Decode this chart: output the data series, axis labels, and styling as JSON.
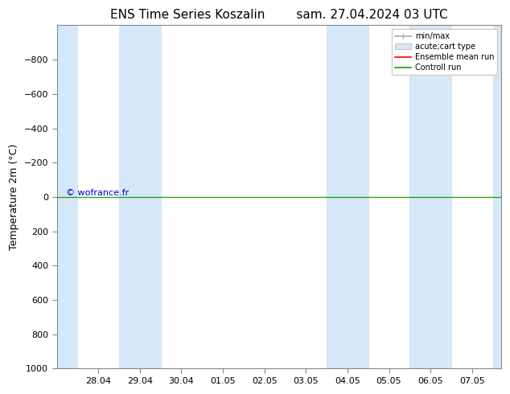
{
  "title_left": "ENS Time Series Koszalin",
  "title_right": "sam. 27.04.2024 03 UTC",
  "ylabel": "Temperature 2m (°C)",
  "ylim": [
    -1000,
    1000
  ],
  "yticks": [
    -800,
    -600,
    -400,
    -200,
    0,
    200,
    400,
    600,
    800,
    1000
  ],
  "background_color": "#ffffff",
  "plot_bg_color": "#ffffff",
  "stripe_color": "#d6e8f7",
  "watermark": "© wofrance.fr",
  "watermark_color": "#0000cc",
  "legend_entries": [
    "min/max",
    "acute;cart type",
    "Ensemble mean run",
    "Controll run"
  ],
  "ensemble_color": "#ff0000",
  "control_color": "#00aa00",
  "minmax_color": "#aaaaaa",
  "acute_color": "#d6e8f7",
  "x_tick_labels": [
    "28.04",
    "29.04",
    "30.04",
    "01.05",
    "02.05",
    "03.05",
    "04.05",
    "05.05",
    "06.05",
    "07.05"
  ],
  "x_tick_positions": [
    1,
    2,
    3,
    4,
    5,
    6,
    7,
    8,
    9,
    10
  ],
  "xlim": [
    0.0,
    10.7
  ],
  "stripe_pairs": [
    [
      0.0,
      0.5
    ],
    [
      1.5,
      2.5
    ],
    [
      6.5,
      7.5
    ],
    [
      8.5,
      9.5
    ],
    [
      10.5,
      10.7
    ]
  ],
  "font_family": "DejaVu Sans",
  "title_fontsize": 11,
  "tick_fontsize": 8,
  "ylabel_fontsize": 9
}
